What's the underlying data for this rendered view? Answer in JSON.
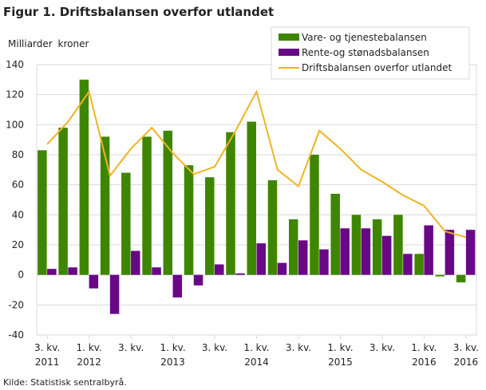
{
  "chart_data": {
    "type": "bar",
    "title": "Figur 1. Driftsbalansen overfor utlandet",
    "ylabel": "Milliarder  kroner",
    "xlabel": "",
    "ylim": [
      -40,
      140
    ],
    "yticks": [
      -40,
      -20,
      0,
      20,
      40,
      60,
      80,
      100,
      120,
      140
    ],
    "grid": true,
    "legend_position": "top-right",
    "categories": [
      "2011K3",
      "2011K4",
      "2012K1",
      "2012K2",
      "2012K3",
      "2012K4",
      "2013K1",
      "2013K2",
      "2013K3",
      "2013K4",
      "2014K1",
      "2014K2",
      "2014K3",
      "2014K4",
      "2015K1",
      "2015K2",
      "2015K3",
      "2015K4",
      "2016K1",
      "2016K2",
      "2016K3"
    ],
    "tick_labels": [
      {
        "index": 0,
        "line1": "3. kv.",
        "line2": "2011"
      },
      {
        "index": 2,
        "line1": "1. kv.",
        "line2": "2012"
      },
      {
        "index": 4,
        "line1": "3. kv.",
        "line2": ""
      },
      {
        "index": 6,
        "line1": "1. kv.",
        "line2": "2013"
      },
      {
        "index": 8,
        "line1": "3. kv.",
        "line2": ""
      },
      {
        "index": 10,
        "line1": "1. kv.",
        "line2": "2014"
      },
      {
        "index": 12,
        "line1": "3. kv.",
        "line2": ""
      },
      {
        "index": 14,
        "line1": "1. kv.",
        "line2": "2015"
      },
      {
        "index": 16,
        "line1": "3. kv.",
        "line2": ""
      },
      {
        "index": 18,
        "line1": "1. kv.",
        "line2": "2016"
      },
      {
        "index": 20,
        "line1": "3. kv.",
        "line2": "2016"
      }
    ],
    "series": [
      {
        "name": "Vare- og tjenestebalansen",
        "kind": "bar",
        "color": "#3f8600",
        "values": [
          83,
          98,
          130,
          92,
          68,
          92,
          96,
          73,
          65,
          95,
          102,
          63,
          37,
          80,
          54,
          40,
          37,
          40,
          14,
          -1,
          -5
        ]
      },
      {
        "name": "Rente-og stønadsbalansen",
        "kind": "bar",
        "color": "#690886",
        "values": [
          4,
          5,
          -9,
          -26,
          16,
          5,
          -15,
          -7,
          7,
          1,
          21,
          8,
          23,
          17,
          31,
          31,
          26,
          14,
          33,
          30,
          30
        ]
      },
      {
        "name": "Driftsbalansen overfor utlandet",
        "kind": "line",
        "color": "#f0b323",
        "values": [
          87,
          102,
          122,
          66,
          84,
          98,
          81,
          67,
          72,
          96,
          122,
          70,
          59,
          96,
          84,
          70,
          62,
          53,
          46,
          29,
          25
        ]
      }
    ]
  },
  "source": "Kilde: Statistisk sentralbyrå."
}
